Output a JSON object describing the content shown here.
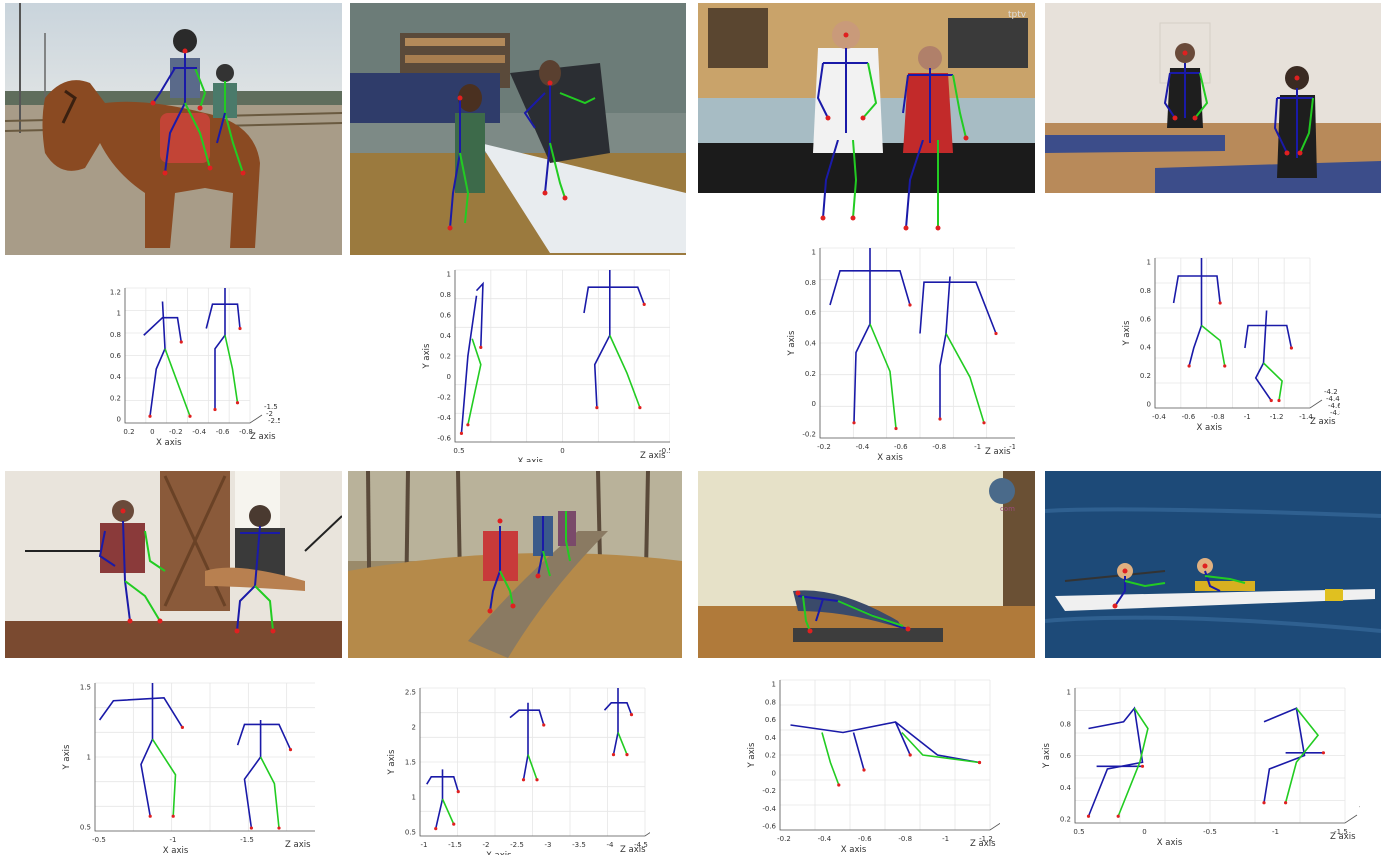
{
  "figure": {
    "photos": [
      {
        "scene": "children-on-horse"
      },
      {
        "scene": "workshop-sail"
      },
      {
        "scene": "kitchen-cooking",
        "watermark": "tptv"
      },
      {
        "scene": "kneeling-yoga"
      },
      {
        "scene": "musicians-guitar"
      },
      {
        "scene": "forest-hikers"
      },
      {
        "scene": "yoga-plank",
        "watermark": "com"
      },
      {
        "scene": "rowing-boat"
      }
    ],
    "plots": [
      {
        "x_label": "X axis",
        "y_label": "Y axis",
        "z_label": "Z axis",
        "y_ticks": [
          "1.2",
          "1",
          "0.8",
          "0.6",
          "0.4",
          "0.2",
          "0"
        ],
        "x_ticks": [
          "0.2",
          "0",
          "-0.2",
          "-0.4",
          "-0.6",
          "-0.8"
        ],
        "z_ticks": [
          "-1.5",
          "-2",
          "-2.5"
        ]
      },
      {
        "x_label": "X axis",
        "y_label": "Y axis",
        "z_label": "Z axis",
        "y_ticks": [
          "1",
          "0.8",
          "0.6",
          "0.4",
          "0.2",
          "0",
          "-0.2",
          "-0.4",
          "-0.6"
        ],
        "x_ticks": [
          "0.5",
          "0",
          "-0.5"
        ],
        "z_ticks": [
          "-2.6",
          "-2.8"
        ]
      },
      {
        "x_label": "X axis",
        "y_label": "Y axis",
        "z_label": "Z axis",
        "y_ticks": [
          "1",
          "0.8",
          "0.6",
          "0.4",
          "0.2",
          "0",
          "-0.2"
        ],
        "x_ticks": [
          "-0.2",
          "-0.4",
          "-0.6",
          "-0.8",
          "-1",
          "-1.2"
        ],
        "z_ticks": [
          "-4.8",
          "-5"
        ]
      },
      {
        "x_label": "X axis",
        "y_label": "Y axis",
        "z_label": "Z axis",
        "y_ticks": [
          "1",
          "0.8",
          "0.6",
          "0.4",
          "0.2",
          "0"
        ],
        "x_ticks": [
          "-0.4",
          "-0.6",
          "-0.8",
          "-1",
          "-1.2",
          "-1.4"
        ],
        "z_ticks": [
          "-4.2",
          "-4.4",
          "-4.6",
          "-4.8"
        ]
      },
      {
        "x_label": "X axis",
        "y_label": "Y axis",
        "z_label": "Z axis",
        "y_ticks": [
          "1.5",
          "1",
          "0.5"
        ],
        "x_ticks": [
          "-0.5",
          "-1",
          "-1.5",
          "-2"
        ],
        "z_ticks": [
          "-5.5",
          "-6"
        ]
      },
      {
        "x_label": "X axis",
        "y_label": "Y axis",
        "z_label": "Z axis",
        "y_ticks": [
          "2.5",
          "2",
          "1.5",
          "1",
          "0.5"
        ],
        "x_ticks": [
          "-1",
          "-1.5",
          "-2",
          "-2.5",
          "-3",
          "-3.5",
          "-4",
          "-4.5"
        ],
        "z_ticks": [
          "-1.5",
          "-2",
          "-2.5"
        ]
      },
      {
        "x_label": "X axis",
        "y_label": "Y axis",
        "z_label": "Z axis",
        "y_ticks": [
          "1",
          "0.8",
          "0.6",
          "0.4",
          "0.2",
          "0",
          "-0.2",
          "-0.4",
          "-0.6"
        ],
        "x_ticks": [
          "-0.2",
          "-0.4",
          "-0.6",
          "-0.8",
          "-1",
          "-1.2"
        ],
        "z_ticks": [
          "-3.5",
          "-4",
          "-4.5"
        ]
      },
      {
        "x_label": "X axis",
        "y_label": "Y axis",
        "z_label": "Z axis",
        "y_ticks": [
          "1",
          "0.8",
          "0.6",
          "0.4",
          "0.2"
        ],
        "x_ticks": [
          "0.5",
          "0",
          "-0.5",
          "-1",
          "-1.5"
        ],
        "z_ticks": [
          "-3.2",
          "-3.4"
        ]
      }
    ],
    "colors": {
      "left_limb": "#22cc22",
      "right_limb": "#1a1aa8",
      "joint": "#e02020",
      "grid": "#e6e6e6",
      "axis": "#555555"
    }
  }
}
